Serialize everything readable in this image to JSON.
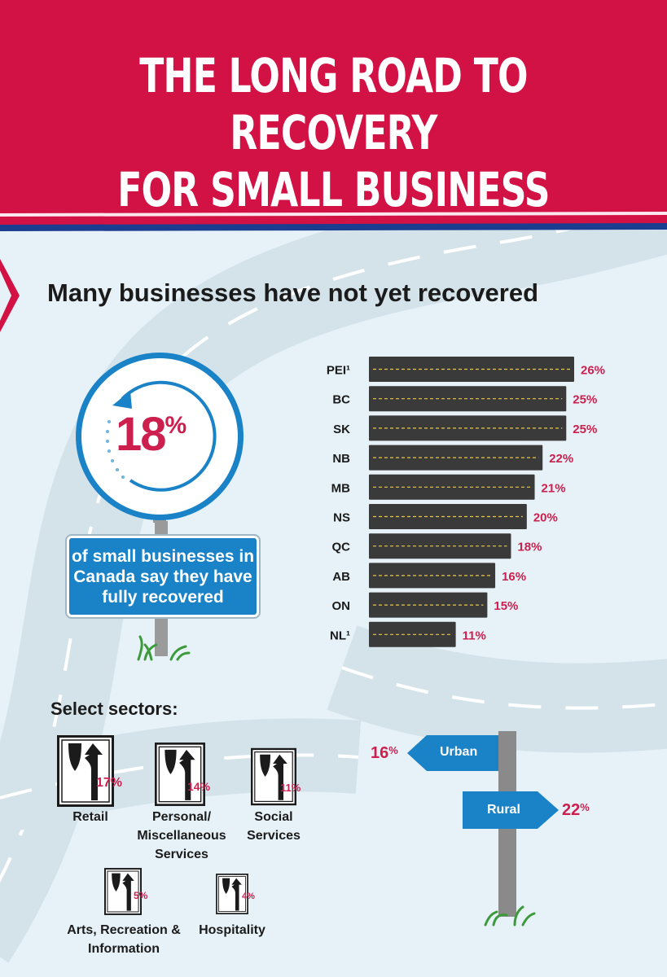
{
  "header": {
    "title_line1": "THE LONG ROAD TO RECOVERY",
    "title_line2": "FOR SMALL BUSINESS"
  },
  "section": {
    "subtitle": "Many businesses have not yet recovered"
  },
  "stat": {
    "value": "18",
    "unit": "%",
    "text": "of small businesses in Canada say they have fully recovered"
  },
  "chart_data": {
    "type": "bar",
    "orientation": "horizontal",
    "categories": [
      "PEI¹",
      "BC",
      "SK",
      "NB",
      "MB",
      "NS",
      "QC",
      "AB",
      "ON",
      "NL¹"
    ],
    "values": [
      26,
      25,
      25,
      22,
      21,
      20,
      18,
      16,
      15,
      11
    ],
    "value_suffix": "%",
    "bar_color": "#3a3a3a",
    "label_color": "#cc1f4e"
  },
  "sectors": {
    "title": "Select sectors:",
    "items": [
      {
        "label": "Retail",
        "value": "17",
        "unit": "%"
      },
      {
        "label": "Personal/ Miscellaneous Services",
        "value": "14",
        "unit": "%"
      },
      {
        "label": "Social Services",
        "value": "11",
        "unit": "%"
      },
      {
        "label": "Arts, Recreation & Information",
        "value": "5",
        "unit": "%"
      },
      {
        "label": "Hospitality",
        "value": "4",
        "unit": "%"
      }
    ]
  },
  "location": {
    "urban": {
      "label": "Urban",
      "value": "16",
      "unit": "%"
    },
    "rural": {
      "label": "Rural",
      "value": "22",
      "unit": "%"
    }
  },
  "colors": {
    "header_red": "#d21245",
    "accent_blue": "#1a82c7",
    "pct_red": "#cc1f4e"
  }
}
